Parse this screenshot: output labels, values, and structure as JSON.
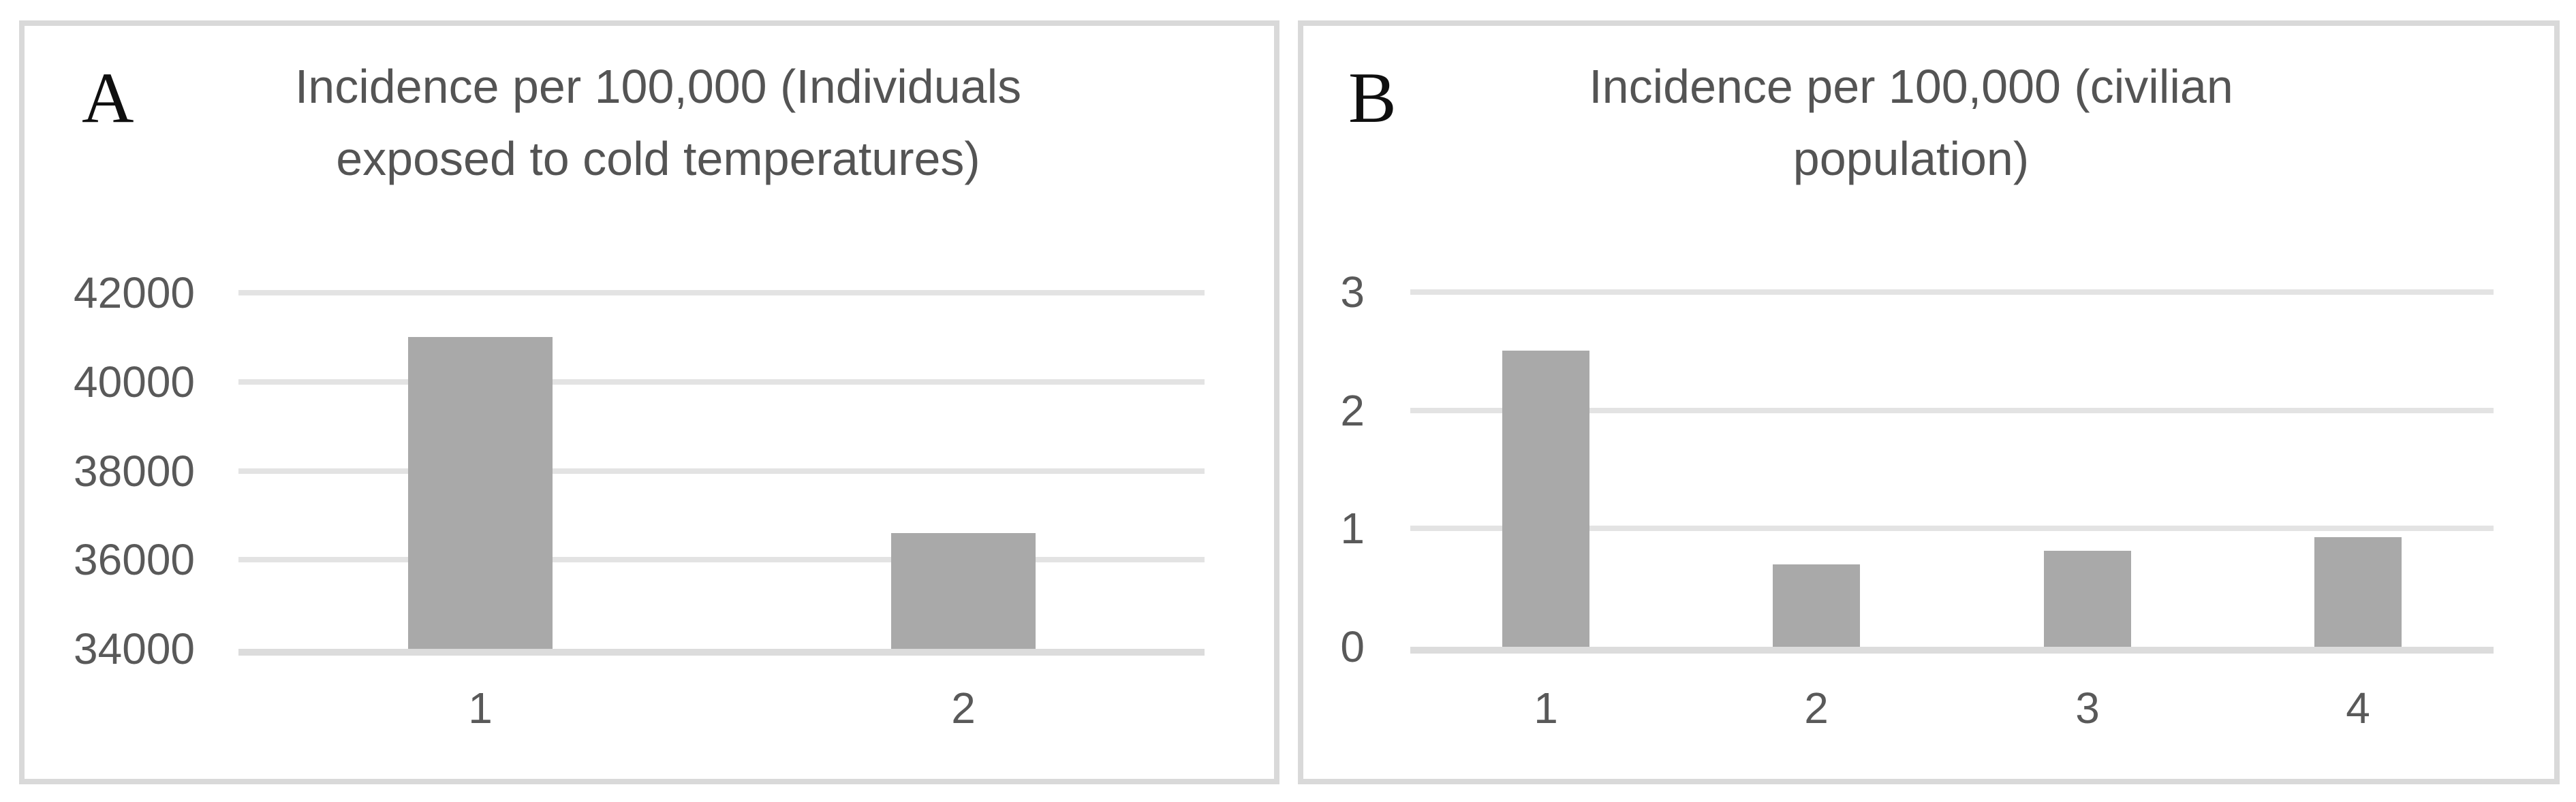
{
  "figure": {
    "background": "#ffffff",
    "panel_border_color": "#d9d9d9",
    "panels": [
      {
        "id": "A",
        "label": "A",
        "title_lines": [
          "Incidence per 100,000 (Individuals",
          "exposed to cold temperatures)"
        ]
      },
      {
        "id": "B",
        "label": "B",
        "title_lines": [
          "Incidence per 100,000 (civilian",
          "population)"
        ]
      }
    ]
  },
  "chart_data": [
    {
      "type": "bar",
      "panel": "A",
      "title": "Incidence per 100,000 (Individuals exposed to cold temperatures)",
      "categories": [
        "1",
        "2"
      ],
      "values": [
        41000,
        36600
      ],
      "yticks": [
        34000,
        36000,
        38000,
        40000,
        42000
      ],
      "ytick_labels": [
        "34000",
        "36000",
        "38000",
        "40000",
        "42000"
      ],
      "ylim": [
        34000,
        42460
      ],
      "xlabel": "",
      "ylabel": "",
      "grid": true,
      "legend": false,
      "bar_color": "#a9a9a9",
      "gridline_color": "#e3e3e3",
      "axis_line_color": "#dcdcdc",
      "axis_text_color": "#595959",
      "title_color": "#545454"
    },
    {
      "type": "bar",
      "panel": "B",
      "title": "Incidence per 100,000 (civilian population)",
      "categories": [
        "1",
        "2",
        "3",
        "4"
      ],
      "values": [
        2.51,
        0.7,
        0.81,
        0.93
      ],
      "yticks": [
        0,
        1,
        2,
        3
      ],
      "ytick_labels": [
        "0",
        "1",
        "2",
        "3"
      ],
      "ylim": [
        0,
        3.17
      ],
      "xlabel": "",
      "ylabel": "",
      "grid": true,
      "legend": false,
      "bar_color": "#a9a9a9",
      "gridline_color": "#e3e3e3",
      "axis_line_color": "#dcdcdc",
      "axis_text_color": "#595959",
      "title_color": "#545454"
    }
  ]
}
